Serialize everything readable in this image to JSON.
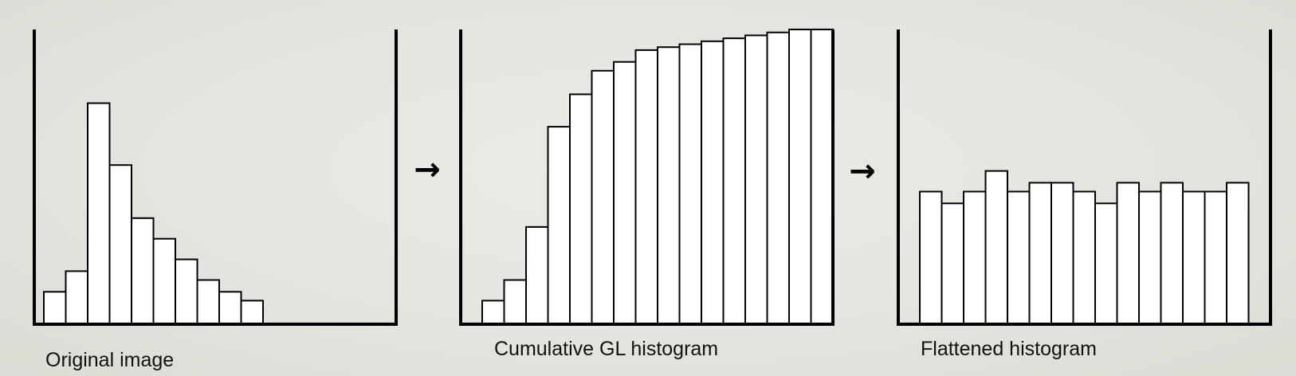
{
  "colors": {
    "background": "#e6e6e0",
    "bar_fill": "#ffffff",
    "stroke": "#000000"
  },
  "arrows": [
    "→",
    "→"
  ],
  "chart_data": [
    {
      "type": "bar",
      "caption": "Original image",
      "xlabel": "",
      "ylabel": "",
      "grid": false,
      "ylim": [
        0,
        100
      ],
      "values": [
        11,
        18,
        75,
        54,
        36,
        29,
        22,
        15,
        11,
        8
      ]
    },
    {
      "type": "bar",
      "caption": "Cumulative GL histogram",
      "xlabel": "",
      "ylabel": "",
      "grid": false,
      "ylim": [
        0,
        100
      ],
      "values": [
        8,
        15,
        33,
        67,
        78,
        86,
        89,
        93,
        94,
        95,
        96,
        97,
        98,
        99,
        100,
        100
      ]
    },
    {
      "type": "bar",
      "caption": "Flattened histogram",
      "xlabel": "",
      "ylabel": "",
      "grid": false,
      "ylim": [
        0,
        100
      ],
      "values": [
        45,
        41,
        45,
        52,
        45,
        48,
        48,
        45,
        41,
        48,
        45,
        48,
        45,
        45,
        48
      ]
    }
  ]
}
